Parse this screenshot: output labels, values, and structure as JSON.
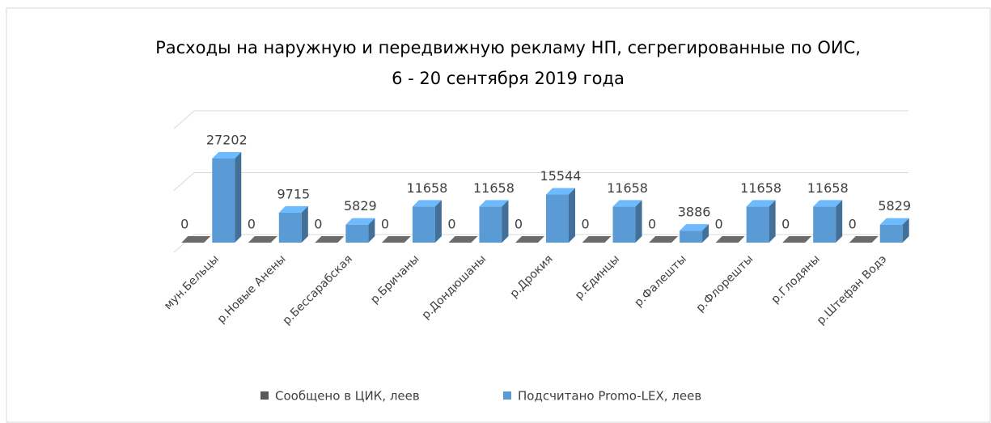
{
  "chart_data": {
    "type": "bar3d",
    "title": [
      "Расходы на наружную и передвижную рекламу НП, сегрегированные по ОИС,",
      "6 - 20 сентября 2019 года"
    ],
    "categories": [
      "мун.Бельцы",
      "р.Новые Анены",
      "р.Бессарабская",
      "р.Бричаны",
      "р.Дондюшаны",
      "р.Дрокия",
      "р.Единцы",
      "р.Фалешты",
      "р.Флорешты",
      "р.Глодяны",
      "р.Штефан Водэ"
    ],
    "series": [
      {
        "name": "Сообщено в ЦИК, леев",
        "color": "#595959",
        "values": [
          0,
          0,
          0,
          0,
          0,
          0,
          0,
          0,
          0,
          0,
          0
        ]
      },
      {
        "name": "Подсчитано Promo-LEX, леев",
        "color": "#5b9bd5",
        "values": [
          27202,
          9715,
          5829,
          11658,
          11658,
          15544,
          11658,
          3886,
          11658,
          11658,
          5829
        ]
      }
    ],
    "ylim": [
      0,
      40000
    ],
    "yticks": [
      0,
      20000,
      40000
    ],
    "grid": true,
    "legend": "bottom"
  }
}
